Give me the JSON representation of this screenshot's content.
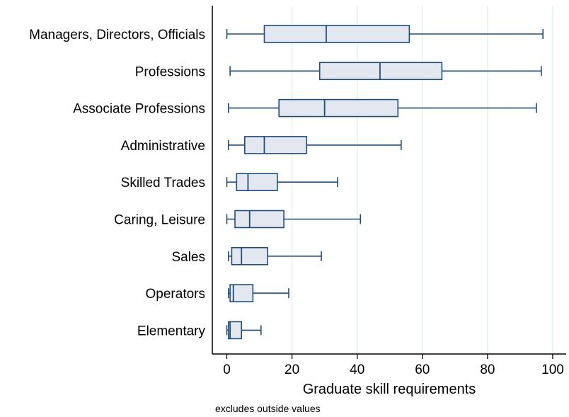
{
  "chart_data": {
    "type": "boxplot",
    "orientation": "horizontal",
    "xlabel": "Graduate skill requirements",
    "note": "excludes outside values",
    "xlim": [
      -4,
      104
    ],
    "xticks": [
      0,
      20,
      40,
      60,
      80,
      100
    ],
    "grid": true,
    "colors": {
      "box_fill": "#e2e7f0",
      "box_stroke": "#1f4e79",
      "grid": "#e3edf3"
    },
    "categories": [
      {
        "label": "Managers, Directors, Officials",
        "min": 0,
        "q1": 11.5,
        "median": 30.5,
        "q3": 56,
        "max": 97
      },
      {
        "label": "Professions",
        "min": 1,
        "q1": 28.5,
        "median": 47,
        "q3": 66,
        "max": 96.5
      },
      {
        "label": "Associate Professions",
        "min": 0.5,
        "q1": 16,
        "median": 30,
        "q3": 52.5,
        "max": 95
      },
      {
        "label": "Administrative",
        "min": 0.5,
        "q1": 5.5,
        "median": 11.5,
        "q3": 24.5,
        "max": 53.5
      },
      {
        "label": "Skilled Trades",
        "min": 0,
        "q1": 3,
        "median": 6.5,
        "q3": 15.5,
        "max": 34
      },
      {
        "label": "Caring, Leisure",
        "min": 0,
        "q1": 2.5,
        "median": 7,
        "q3": 17.5,
        "max": 41
      },
      {
        "label": "Sales",
        "min": 0.5,
        "q1": 1.5,
        "median": 4.5,
        "q3": 12.5,
        "max": 29
      },
      {
        "label": "Operators",
        "min": 0.5,
        "q1": 1,
        "median": 2,
        "q3": 8,
        "max": 19
      },
      {
        "label": "Elementary",
        "min": 0,
        "q1": 0.5,
        "median": 1,
        "q3": 4.5,
        "max": 10.5
      }
    ]
  }
}
